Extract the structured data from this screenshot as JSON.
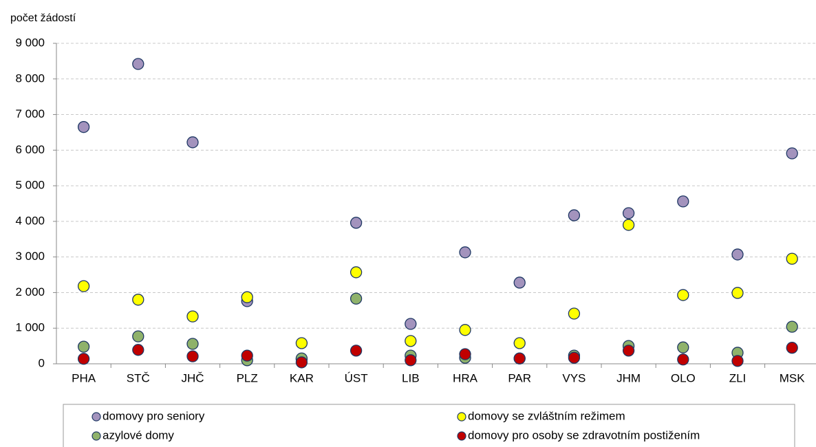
{
  "chart_data": {
    "type": "scatter",
    "ylabel": "počet žádostí",
    "categories": [
      "PHA",
      "STČ",
      "JHČ",
      "PLZ",
      "KAR",
      "ÚST",
      "LIB",
      "HRA",
      "PAR",
      "VYS",
      "JHM",
      "OLO",
      "ZLI",
      "MSK"
    ],
    "series": [
      {
        "name": "domovy pro seniory",
        "color": "#a393bd",
        "values": [
          6650,
          8420,
          6220,
          1760,
          130,
          3960,
          1120,
          3130,
          2280,
          4170,
          4230,
          4560,
          3070,
          5910
        ]
      },
      {
        "name": "domovy se zvláštním režimem",
        "color": "#ffff00",
        "values": [
          2180,
          1800,
          1330,
          1870,
          580,
          2570,
          640,
          950,
          580,
          1410,
          3900,
          1930,
          1990,
          2950
        ]
      },
      {
        "name": "azylové domy",
        "color": "#8fb26b",
        "values": [
          480,
          770,
          560,
          100,
          150,
          1830,
          230,
          170,
          150,
          230,
          500,
          460,
          310,
          1040
        ]
      },
      {
        "name": "domovy pro osoby se zdravotním postižením",
        "color": "#c00000",
        "values": [
          140,
          390,
          210,
          230,
          40,
          370,
          100,
          270,
          150,
          170,
          370,
          120,
          80,
          450
        ]
      }
    ],
    "ylim": [
      0,
      9000
    ],
    "yticks": [
      0,
      {
        "value": 1000,
        "label": "1 000"
      },
      {
        "value": 2000,
        "label": "2 000"
      },
      {
        "value": 3000,
        "label": "3 000"
      },
      {
        "value": 4000,
        "label": "4 000"
      },
      {
        "value": 5000,
        "label": "5 000"
      },
      {
        "value": 6000,
        "label": "6 000"
      },
      {
        "value": 7000,
        "label": "7 000"
      },
      {
        "value": 8000,
        "label": "8 000"
      },
      {
        "value": 9000,
        "label": "9 000"
      }
    ],
    "grid": true,
    "legend": "bottom"
  }
}
